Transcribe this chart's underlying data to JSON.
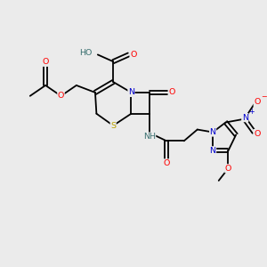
{
  "bg_color": "#ebebeb",
  "bond_color": "#000000",
  "atom_colors": {
    "O": "#ff0000",
    "N": "#0000cd",
    "S": "#b8a000",
    "H": "#3a7070",
    "C": "#000000",
    "plus": "#0000cd",
    "minus": "#ff0000"
  },
  "figsize": [
    3.0,
    3.0
  ],
  "dpi": 100
}
